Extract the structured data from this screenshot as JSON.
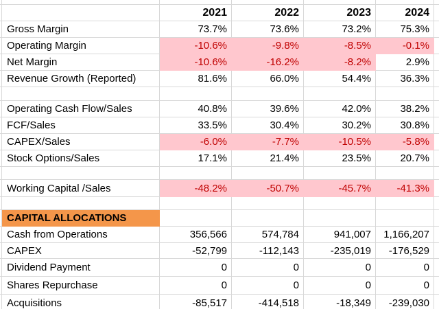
{
  "sheet": {
    "years": [
      "2021",
      "2022",
      "2023",
      "2024"
    ],
    "rows": [
      {
        "type": "data",
        "label": "Gross Margin",
        "values": [
          "73.7%",
          "73.6%",
          "73.2%",
          "75.3%"
        ]
      },
      {
        "type": "data",
        "label": "Operating Margin",
        "values": [
          "-10.6%",
          "-9.8%",
          "-8.5%",
          "-0.1%"
        ],
        "cell_styles": [
          "bad",
          "bad",
          "bad",
          "bad"
        ]
      },
      {
        "type": "data",
        "label": "Net Margin",
        "values": [
          "-10.6%",
          "-16.2%",
          "-8.2%",
          "2.9%"
        ],
        "cell_styles": [
          "bad",
          "bad",
          "bad",
          "normal"
        ]
      },
      {
        "type": "data",
        "label": "Revenue Growth (Reported)",
        "values": [
          "81.6%",
          "66.0%",
          "54.4%",
          "36.3%"
        ]
      },
      {
        "type": "blank"
      },
      {
        "type": "data",
        "label": "Operating Cash Flow/Sales",
        "values": [
          "40.8%",
          "39.6%",
          "42.0%",
          "38.2%"
        ]
      },
      {
        "type": "data",
        "label": "FCF/Sales",
        "values": [
          "33.5%",
          "30.4%",
          "30.2%",
          "30.8%"
        ]
      },
      {
        "type": "data",
        "label": "CAPEX/Sales",
        "values": [
          "-6.0%",
          "-7.7%",
          "-10.5%",
          "-5.8%"
        ],
        "cell_styles": [
          "bad",
          "bad",
          "bad",
          "bad"
        ]
      },
      {
        "type": "data",
        "label": "Stock Options/Sales",
        "values": [
          "17.1%",
          "21.4%",
          "23.5%",
          "20.7%"
        ]
      },
      {
        "type": "blank"
      },
      {
        "type": "data",
        "label": "Working Capital /Sales",
        "values": [
          "-48.2%",
          "-50.7%",
          "-45.7%",
          "-41.3%"
        ],
        "cell_styles": [
          "bad",
          "bad",
          "bad",
          "bad"
        ]
      },
      {
        "type": "blank"
      },
      {
        "type": "section",
        "label": "CAPITAL ALLOCATIONS",
        "values": [
          "",
          "",
          "",
          ""
        ]
      },
      {
        "type": "data",
        "label": "Cash from Operations",
        "values": [
          "356,566",
          "574,784",
          "941,007",
          "1,166,207"
        ]
      },
      {
        "type": "data",
        "label": "CAPEX",
        "values": [
          "-52,799",
          "-112,143",
          "-235,019",
          "-176,529"
        ]
      },
      {
        "type": "data",
        "label": "Dividend Payment",
        "values": [
          "0",
          "0",
          "0",
          "0"
        ]
      },
      {
        "type": "data",
        "label": "Shares Repurchase",
        "values": [
          "0",
          "0",
          "0",
          "0"
        ]
      },
      {
        "type": "data",
        "label": "Acquisitions",
        "values": [
          "-85,517",
          "-414,518",
          "-18,349",
          "-239,030"
        ]
      }
    ],
    "colors": {
      "bad_fill": "#ffc7ce",
      "bad_text": "#c00000",
      "section_fill": "#f4964a",
      "gridline": "#d8d8d8"
    }
  }
}
